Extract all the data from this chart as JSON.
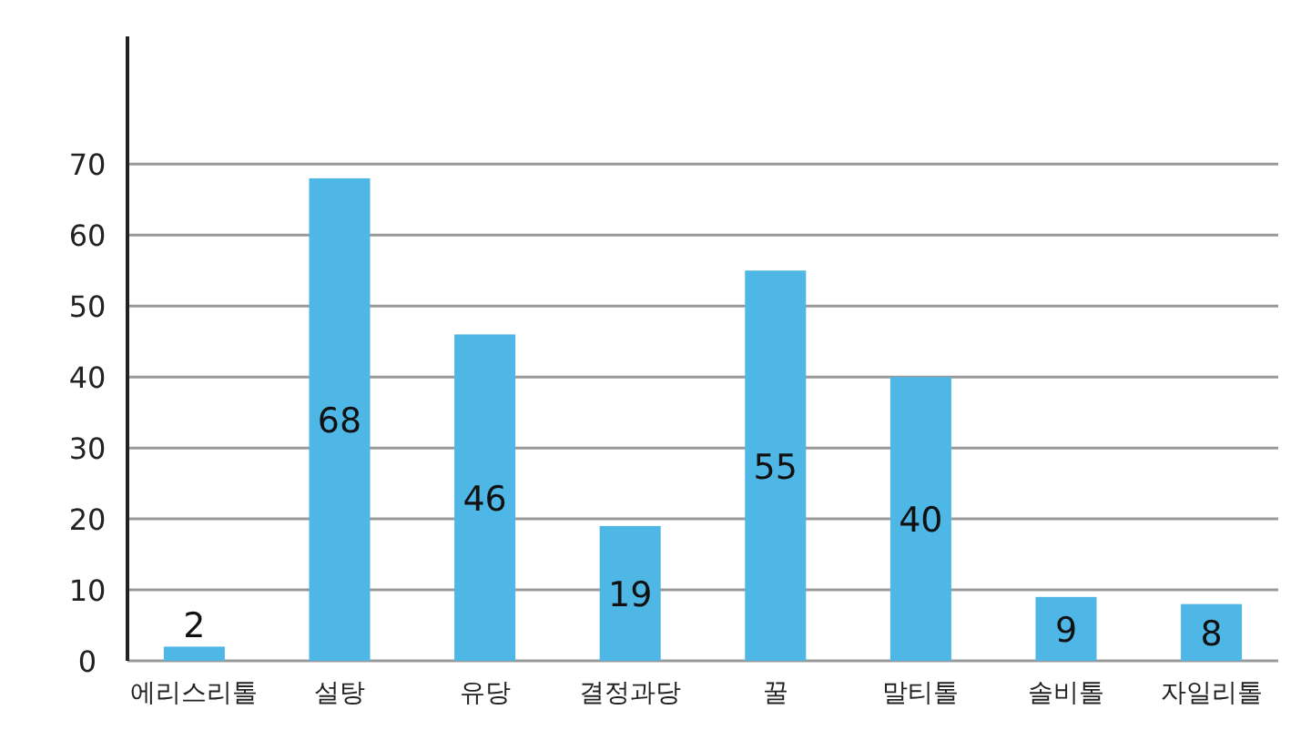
{
  "chart_data": {
    "type": "bar",
    "categories": [
      "에리스리톨",
      "설탕",
      "유당",
      "결정과당",
      "꿀",
      "말티톨",
      "솔비톨",
      "자일리톨"
    ],
    "values": [
      2,
      68,
      46,
      19,
      55,
      40,
      9,
      8
    ],
    "color": "#4fb7e6",
    "ylim": [
      0,
      88
    ],
    "yticks": [
      0,
      10,
      20,
      30,
      40,
      50,
      60,
      70
    ],
    "grid": "y",
    "data_labels": true
  }
}
